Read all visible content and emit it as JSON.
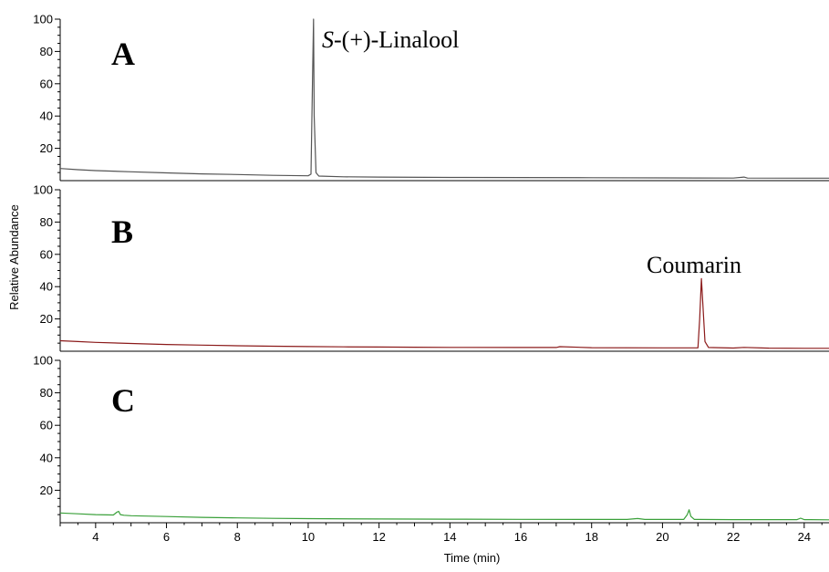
{
  "chart_data": {
    "type": "line",
    "xlabel": "Time (min)",
    "ylabel": "Relative Abundance",
    "xlim": [
      3,
      24.7
    ],
    "ylim": [
      0,
      100
    ],
    "x_ticks": [
      4,
      6,
      8,
      10,
      12,
      14,
      16,
      18,
      20,
      22,
      24
    ],
    "y_ticks": [
      20,
      40,
      60,
      80,
      100
    ],
    "panels": [
      {
        "letter": "A",
        "color": "#555555",
        "annotation": {
          "text_italic": "S",
          "text": "-(+)-Linalool",
          "x": 10.15
        },
        "series": [
          {
            "x": [
              3.0,
              3.5,
              4.0,
              5.0,
              6.0,
              7.0,
              8.0,
              9.0,
              10.0,
              10.08,
              10.12,
              10.15,
              10.17,
              10.22,
              10.3,
              11.0,
              12.0,
              14.0,
              16.0,
              18.0,
              20.0,
              22.0,
              22.3,
              22.4,
              24.0,
              24.7
            ],
            "y": [
              7.5,
              6.8,
              6.2,
              5.5,
              4.8,
              4.2,
              3.8,
              3.3,
              3.0,
              4.0,
              60.0,
              100.0,
              40.0,
              5.0,
              2.8,
              2.4,
              2.2,
              2.0,
              1.9,
              1.8,
              1.7,
              1.6,
              2.2,
              1.6,
              1.5,
              1.5
            ]
          }
        ]
      },
      {
        "letter": "B",
        "color": "#8b1a1a",
        "annotation": {
          "text_italic": "",
          "text": "Coumarin",
          "x": 21.1
        },
        "series": [
          {
            "x": [
              3.0,
              3.5,
              4.0,
              5.0,
              6.0,
              7.0,
              8.0,
              9.0,
              10.0,
              11.0,
              12.0,
              13.0,
              14.0,
              16.0,
              17.0,
              17.1,
              18.0,
              20.0,
              21.0,
              21.05,
              21.1,
              21.15,
              21.2,
              21.3,
              22.0,
              22.3,
              23.0,
              24.0,
              24.7
            ],
            "y": [
              6.5,
              6.0,
              5.5,
              4.8,
              4.2,
              3.8,
              3.4,
              3.1,
              2.9,
              2.7,
              2.6,
              2.5,
              2.4,
              2.3,
              2.3,
              2.8,
              2.2,
              2.1,
              2.1,
              20.0,
              45.0,
              25.0,
              6.0,
              2.3,
              2.0,
              2.4,
              1.9,
              1.8,
              1.8
            ]
          }
        ]
      },
      {
        "letter": "C",
        "color": "#3aa03a",
        "annotation": null,
        "series": [
          {
            "x": [
              3.0,
              3.5,
              4.0,
              4.5,
              4.6,
              4.65,
              4.7,
              4.8,
              5.0,
              6.0,
              7.0,
              8.0,
              9.0,
              10.0,
              12.0,
              14.0,
              16.0,
              18.0,
              19.0,
              19.3,
              19.5,
              20.0,
              20.6,
              20.7,
              20.75,
              20.8,
              20.9,
              21.0,
              22.0,
              23.8,
              23.9,
              24.0,
              24.7
            ],
            "y": [
              6.0,
              5.5,
              5.0,
              4.8,
              6.5,
              7.0,
              5.0,
              4.6,
              4.3,
              3.8,
              3.3,
              3.0,
              2.7,
              2.5,
              2.3,
              2.2,
              2.1,
              2.0,
              2.0,
              2.6,
              2.0,
              2.0,
              2.0,
              5.0,
              8.0,
              4.0,
              2.0,
              2.0,
              1.9,
              1.9,
              2.8,
              1.9,
              1.8
            ]
          }
        ]
      }
    ]
  }
}
